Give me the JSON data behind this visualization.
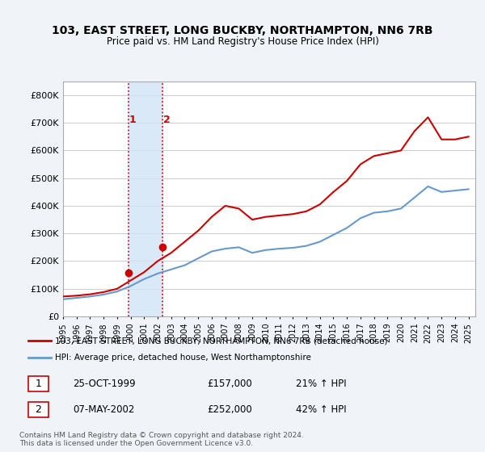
{
  "title": "103, EAST STREET, LONG BUCKBY, NORTHAMPTON, NN6 7RB",
  "subtitle": "Price paid vs. HM Land Registry's House Price Index (HPI)",
  "background_color": "#f0f4f8",
  "plot_background": "#ffffff",
  "ylabel_ticks": [
    "£0",
    "£100K",
    "£200K",
    "£300K",
    "£400K",
    "£500K",
    "£600K",
    "£700K",
    "£800K"
  ],
  "ytick_values": [
    0,
    100000,
    200000,
    300000,
    400000,
    500000,
    600000,
    700000,
    800000
  ],
  "ylim": [
    0,
    850000
  ],
  "xlim_start": 1995.0,
  "xlim_end": 2025.5,
  "sale1_x": 1999.82,
  "sale1_y": 157000,
  "sale1_label": "1",
  "sale1_date": "25-OCT-1999",
  "sale1_price": "£157,000",
  "sale1_hpi": "21% ↑ HPI",
  "sale2_x": 2002.36,
  "sale2_y": 252000,
  "sale2_label": "2",
  "sale2_date": "07-MAY-2002",
  "sale2_price": "£252,000",
  "sale2_hpi": "42% ↑ HPI",
  "highlight_fill": "#d0e4f7",
  "highlight_alpha": 0.5,
  "vline_color": "#cc0000",
  "vline_style": ":",
  "red_line_color": "#cc0000",
  "blue_line_color": "#6699cc",
  "legend_label_red": "103, EAST STREET, LONG BUCKBY, NORTHAMPTON, NN6 7RB (detached house)",
  "legend_label_blue": "HPI: Average price, detached house, West Northamptonshire",
  "footer": "Contains HM Land Registry data © Crown copyright and database right 2024.\nThis data is licensed under the Open Government Licence v3.0.",
  "x_years": [
    1995,
    1996,
    1997,
    1998,
    1999,
    2000,
    2001,
    2002,
    2003,
    2004,
    2005,
    2006,
    2007,
    2008,
    2009,
    2010,
    2011,
    2012,
    2013,
    2014,
    2015,
    2016,
    2017,
    2018,
    2019,
    2020,
    2021,
    2022,
    2023,
    2024,
    2025
  ],
  "hpi_values": [
    62000,
    67000,
    72000,
    79000,
    90000,
    110000,
    135000,
    155000,
    170000,
    185000,
    210000,
    235000,
    245000,
    250000,
    230000,
    240000,
    245000,
    248000,
    255000,
    270000,
    295000,
    320000,
    355000,
    375000,
    380000,
    390000,
    430000,
    470000,
    450000,
    455000,
    460000
  ],
  "red_values": [
    72000,
    75000,
    80000,
    88000,
    100000,
    130000,
    160000,
    200000,
    230000,
    270000,
    310000,
    360000,
    400000,
    390000,
    350000,
    360000,
    365000,
    370000,
    380000,
    405000,
    450000,
    490000,
    550000,
    580000,
    590000,
    600000,
    670000,
    720000,
    640000,
    640000,
    650000
  ]
}
